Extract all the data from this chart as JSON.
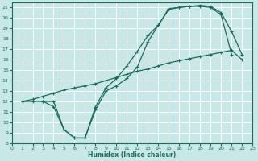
{
  "xlabel": "Humidex (Indice chaleur)",
  "bg_color": "#c8e8e8",
  "grid_color": "#b8d8d8",
  "line_color": "#1a6b5a",
  "xlim": [
    0,
    23
  ],
  "ylim": [
    8,
    21.5
  ],
  "xticks": [
    0,
    1,
    2,
    3,
    4,
    5,
    6,
    7,
    8,
    9,
    10,
    11,
    12,
    13,
    14,
    15,
    16,
    17,
    18,
    19,
    20,
    21,
    22,
    23
  ],
  "yticks": [
    8,
    9,
    10,
    11,
    12,
    13,
    14,
    15,
    16,
    17,
    18,
    19,
    20,
    21
  ],
  "curve1_x": [
    1,
    2,
    3,
    4,
    5,
    6,
    7,
    8,
    9,
    10,
    11,
    12,
    13,
    14,
    15,
    16,
    17,
    18,
    19,
    20,
    21
  ],
  "curve1_y": [
    12,
    12,
    12,
    11.5,
    9.3,
    8.5,
    8.5,
    11.2,
    13.0,
    13.5,
    14.2,
    15.3,
    17.7,
    19.3,
    20.9,
    21.0,
    21.1,
    21.1,
    21.0,
    20.3,
    16.5
  ],
  "curve2_x": [
    1,
    2,
    3,
    4,
    5,
    6,
    7,
    8,
    9,
    10,
    11,
    12,
    13,
    14,
    15,
    16,
    17,
    18,
    19,
    20,
    21,
    22
  ],
  "curve2_y": [
    12,
    12.2,
    12.5,
    12.8,
    13.1,
    13.3,
    13.5,
    13.7,
    14.0,
    14.3,
    14.6,
    14.9,
    15.1,
    15.4,
    15.7,
    15.9,
    16.1,
    16.3,
    16.5,
    16.7,
    16.9,
    16.0
  ],
  "curve3_x": [
    3,
    4,
    5,
    6,
    7,
    8,
    9,
    10,
    11,
    12,
    13,
    14,
    15,
    16,
    17,
    18,
    19,
    20,
    21,
    22
  ],
  "curve3_y": [
    12,
    12,
    9.3,
    8.5,
    8.5,
    11.5,
    13.3,
    14.2,
    15.4,
    16.8,
    18.3,
    19.3,
    20.8,
    21.0,
    21.1,
    21.2,
    21.1,
    20.5,
    18.7,
    16.5
  ]
}
